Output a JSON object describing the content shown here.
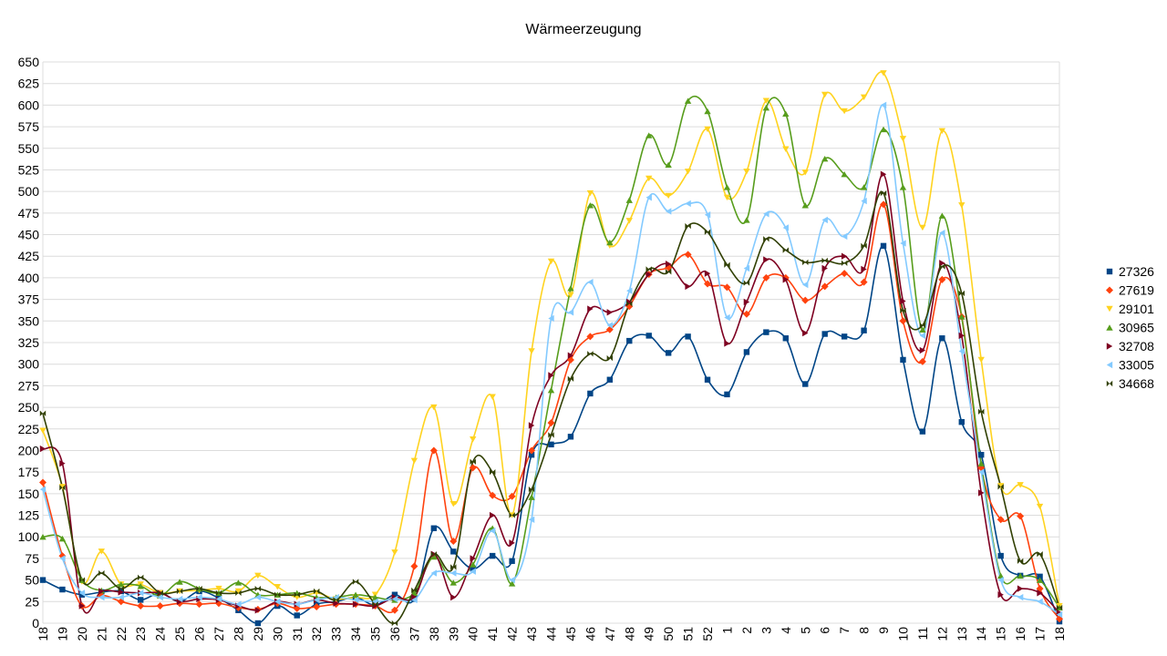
{
  "chart_data": {
    "type": "line",
    "title": "Wärmeerzeugung",
    "xlabel": "",
    "ylabel": "",
    "ylim": [
      0,
      650
    ],
    "ytick_step": 25,
    "grid": true,
    "legend_position": "right",
    "categories": [
      "18",
      "19",
      "20",
      "21",
      "22",
      "23",
      "24",
      "25",
      "26",
      "27",
      "28",
      "29",
      "30",
      "31",
      "32",
      "33",
      "34",
      "35",
      "36",
      "37",
      "38",
      "39",
      "40",
      "41",
      "42",
      "43",
      "44",
      "45",
      "46",
      "47",
      "48",
      "49",
      "50",
      "51",
      "52",
      "1",
      "2",
      "3",
      "4",
      "5",
      "6",
      "7",
      "8",
      "9",
      "10",
      "11",
      "12",
      "13",
      "14",
      "15",
      "16",
      "17",
      "18"
    ],
    "series": [
      {
        "name": "27326",
        "color": "#004586",
        "marker": "square",
        "values": [
          50,
          39,
          33,
          36,
          37,
          27,
          35,
          25,
          37,
          29,
          15,
          0,
          20,
          9,
          22,
          25,
          30,
          21,
          33,
          28,
          110,
          83,
          63,
          78,
          72,
          195,
          207,
          216,
          266,
          282,
          327,
          333,
          313,
          332,
          282,
          265,
          314,
          337,
          330,
          277,
          335,
          332,
          339,
          437,
          305,
          222,
          330,
          233,
          195,
          78,
          55,
          54,
          2
        ]
      },
      {
        "name": "27619",
        "color": "#ff420e",
        "marker": "diamond",
        "values": [
          163,
          78,
          20,
          32,
          25,
          20,
          20,
          23,
          22,
          23,
          18,
          16,
          23,
          17,
          19,
          22,
          22,
          20,
          15,
          66,
          200,
          95,
          180,
          148,
          147,
          200,
          232,
          305,
          332,
          340,
          367,
          404,
          412,
          427,
          393,
          389,
          358,
          400,
          400,
          374,
          390,
          405,
          395,
          485,
          350,
          303,
          398,
          355,
          180,
          120,
          124,
          40,
          5
        ]
      },
      {
        "name": "29101",
        "color": "#ffd320",
        "marker": "triangle-down",
        "values": [
          223,
          158,
          48,
          83,
          45,
          45,
          35,
          37,
          38,
          40,
          37,
          55,
          42,
          30,
          35,
          28,
          30,
          33,
          82,
          188,
          250,
          138,
          213,
          262,
          125,
          315,
          419,
          380,
          498,
          437,
          466,
          515,
          495,
          523,
          572,
          493,
          523,
          605,
          549,
          522,
          612,
          593,
          609,
          637,
          561,
          458,
          570,
          484,
          305,
          159,
          160,
          135,
          20
        ]
      },
      {
        "name": "30965",
        "color": "#579d1c",
        "marker": "triangle-up",
        "values": [
          100,
          98,
          50,
          38,
          45,
          43,
          32,
          48,
          40,
          35,
          47,
          33,
          33,
          35,
          30,
          30,
          33,
          30,
          27,
          35,
          77,
          47,
          68,
          110,
          46,
          146,
          270,
          388,
          484,
          441,
          490,
          565,
          531,
          605,
          593,
          505,
          467,
          597,
          590,
          484,
          538,
          520,
          505,
          572,
          505,
          340,
          472,
          355,
          185,
          55,
          55,
          50,
          18
        ]
      },
      {
        "name": "32708",
        "color": "#7e0021",
        "marker": "triangle-right",
        "values": [
          202,
          185,
          20,
          37,
          36,
          35,
          35,
          25,
          28,
          27,
          20,
          15,
          25,
          22,
          27,
          23,
          22,
          20,
          30,
          30,
          80,
          30,
          75,
          125,
          93,
          229,
          287,
          310,
          364,
          360,
          372,
          404,
          416,
          390,
          405,
          324,
          372,
          421,
          398,
          336,
          411,
          425,
          410,
          520,
          373,
          316,
          417,
          333,
          151,
          33,
          40,
          35,
          12
        ]
      },
      {
        "name": "33005",
        "color": "#83caff",
        "marker": "triangle-left",
        "values": [
          155,
          75,
          35,
          30,
          30,
          35,
          30,
          28,
          30,
          28,
          22,
          30,
          25,
          22,
          27,
          30,
          27,
          25,
          28,
          27,
          58,
          58,
          60,
          107,
          50,
          120,
          353,
          360,
          395,
          345,
          385,
          493,
          477,
          486,
          473,
          354,
          411,
          474,
          458,
          392,
          467,
          448,
          489,
          600,
          440,
          333,
          452,
          315,
          175,
          50,
          30,
          25,
          10
        ]
      },
      {
        "name": "34668",
        "color": "#314004",
        "marker": "hourglass",
        "values": [
          243,
          157,
          50,
          58,
          40,
          53,
          35,
          37,
          40,
          35,
          35,
          40,
          33,
          33,
          37,
          27,
          48,
          22,
          0,
          38,
          80,
          65,
          187,
          175,
          125,
          155,
          218,
          283,
          312,
          307,
          370,
          410,
          407,
          460,
          453,
          415,
          394,
          445,
          432,
          418,
          420,
          417,
          437,
          498,
          362,
          345,
          413,
          382,
          245,
          158,
          72,
          80,
          18
        ]
      }
    ]
  }
}
